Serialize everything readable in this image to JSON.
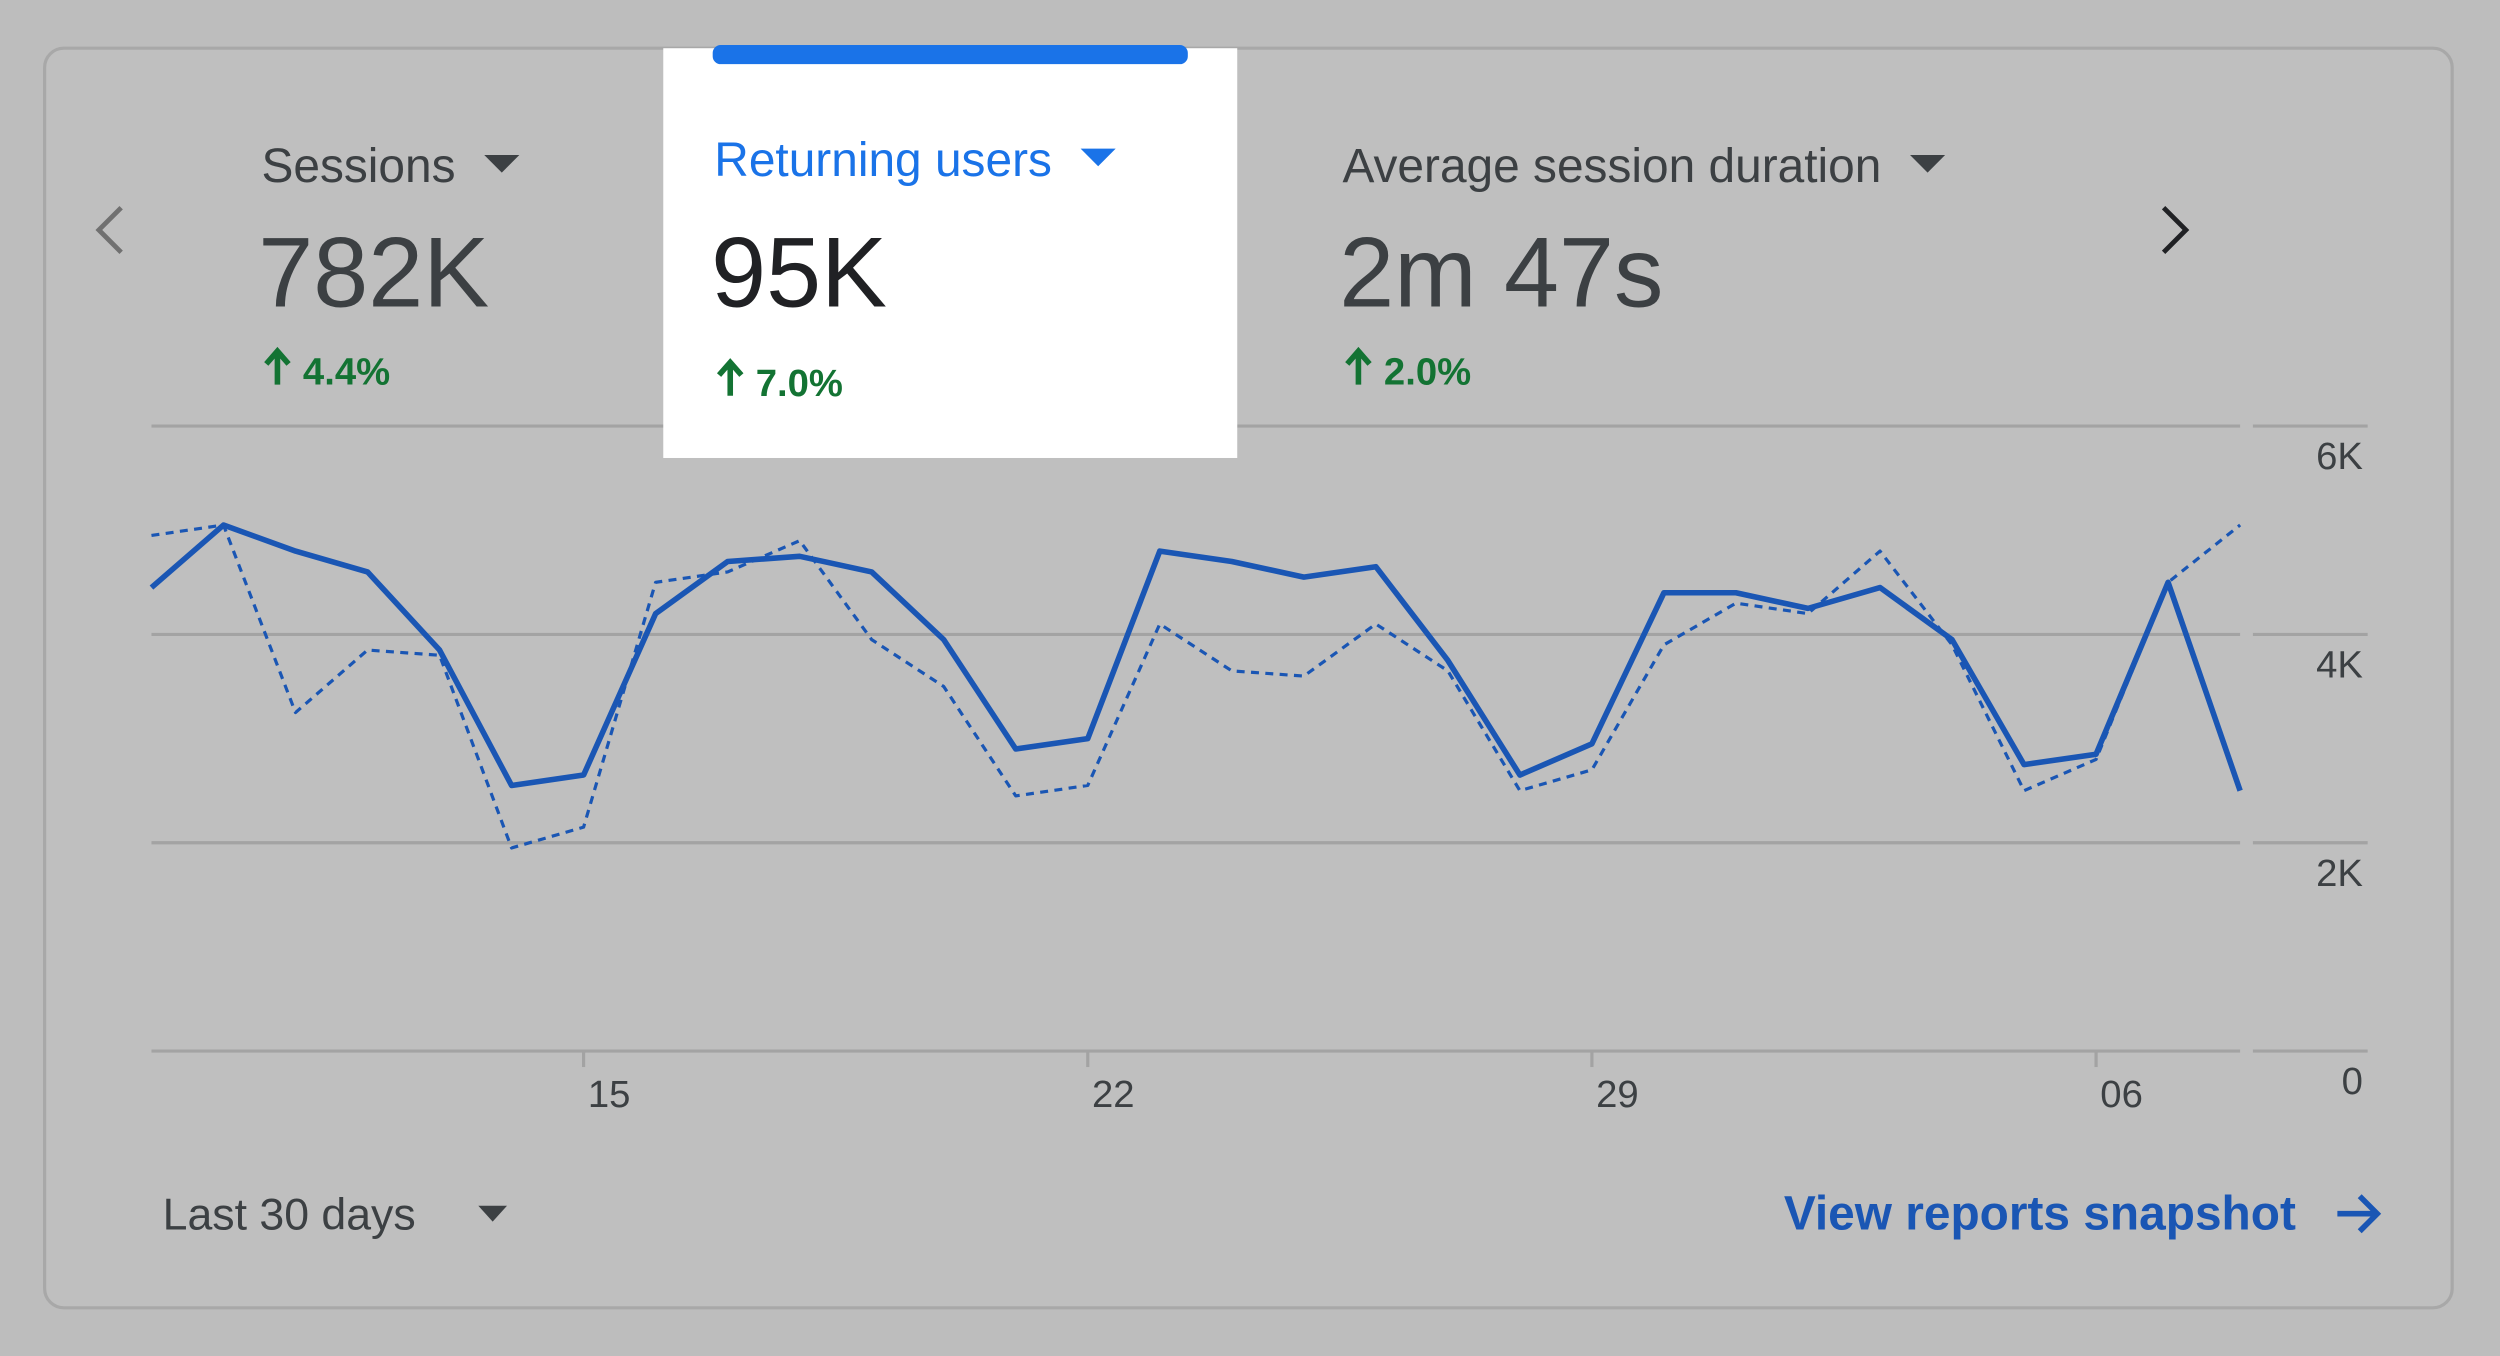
{
  "metrics": [
    {
      "label": "Sessions",
      "value": "782K",
      "change": "4.4%"
    },
    {
      "label": "Returning users",
      "value": "95K",
      "change": "7.0%"
    },
    {
      "label": "Average session duration",
      "value": "2m 47s",
      "change": "2.0%"
    }
  ],
  "selected_metric": 1,
  "chart_data": {
    "type": "line",
    "categories": [
      null,
      null,
      null,
      null,
      null,
      null,
      "15",
      null,
      null,
      null,
      null,
      null,
      null,
      "22",
      null,
      null,
      null,
      null,
      null,
      null,
      "29",
      null,
      null,
      null,
      null,
      null,
      null,
      "06",
      null,
      null
    ],
    "series": [
      {
        "color": "#1a56b4",
        "style": "solid",
        "values": [
          4450,
          5050,
          4800,
          4600,
          3850,
          2550,
          2650,
          4200,
          4700,
          4750,
          4600,
          3950,
          2900,
          3000,
          4800,
          4700,
          4550,
          4650,
          3750,
          2650,
          2950,
          4400,
          4400,
          4250,
          4450,
          3950,
          2750,
          2850,
          4500,
          2500
        ]
      },
      {
        "color": "#1a56b4",
        "style": "dashed",
        "values": [
          4950,
          5050,
          3250,
          3850,
          3800,
          1950,
          2150,
          4500,
          4600,
          4900,
          3950,
          3500,
          2450,
          2550,
          4100,
          3650,
          3600,
          4100,
          3650,
          2500,
          2700,
          3900,
          4300,
          4200,
          4800,
          3900,
          2500,
          2800,
          4500,
          5050
        ]
      }
    ],
    "ylim": [
      0,
      6000
    ],
    "yticks": [
      0,
      {
        "value": 2000,
        "label": "2K"
      },
      {
        "value": 4000,
        "label": "4K"
      },
      {
        "value": 6000,
        "label": "6K"
      }
    ],
    "grid": true,
    "y_axis_side": "right"
  },
  "footer": {
    "range": "Last 30 days",
    "link": "View reports snapshot"
  }
}
